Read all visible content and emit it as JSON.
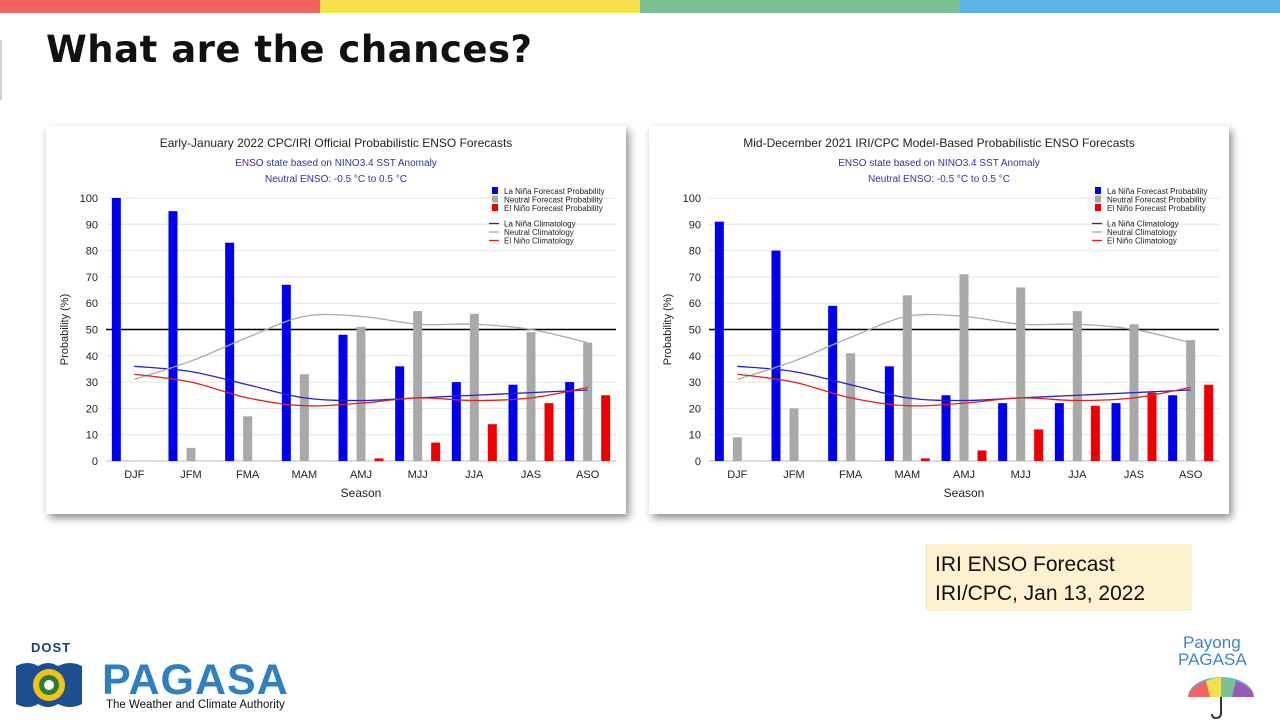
{
  "slide": {
    "title": "What are the chances?",
    "top_bar_colors": [
      "#ef6461",
      "#f5df4d",
      "#7cc196",
      "#5ab4e5"
    ]
  },
  "source_note": {
    "line1": "IRI ENSO Forecast",
    "line2": "IRI/CPC, Jan 13, 2022"
  },
  "logos": {
    "left": {
      "org": "DOST",
      "name": "PAGASA",
      "tagline": "The Weather and Climate Authority",
      "icon": "pagasa-seal-icon"
    },
    "right": {
      "line1": "Payong",
      "line2": "PAGASA",
      "icon": "umbrella-icon"
    }
  },
  "colors": {
    "la_nina": "#0000ee",
    "neutral": "#a9a9a9",
    "el_nino": "#ee0000",
    "la_nina_clim": "#2222cc",
    "neutral_clim": "#aaaaaa",
    "el_nino_clim": "#dd2222"
  },
  "chart_data": [
    {
      "type": "bar",
      "title": "Early-January 2022 CPC/IRI Official Probabilistic ENSO Forecasts",
      "subtitle1": "ENSO state based on NINO3.4 SST Anomaly",
      "subtitle2": "Neutral ENSO: -0.5 °C to 0.5 °C",
      "xlabel": "Season",
      "ylabel": "Probability (%)",
      "ylim": [
        0,
        100
      ],
      "yticks": [
        0,
        10,
        20,
        30,
        40,
        50,
        60,
        70,
        80,
        90,
        100
      ],
      "reference_line": 50,
      "grid": true,
      "legend_position": "top-right",
      "categories": [
        "DJF",
        "JFM",
        "FMA",
        "MAM",
        "AMJ",
        "MJJ",
        "JJA",
        "JAS",
        "ASO"
      ],
      "series": [
        {
          "name": "La Niña Forecast Probability",
          "kind": "bar",
          "color_key": "la_nina",
          "values": [
            100,
            95,
            83,
            67,
            48,
            36,
            30,
            29,
            30
          ]
        },
        {
          "name": "Neutral Forecast Probability",
          "kind": "bar",
          "color_key": "neutral",
          "values": [
            0,
            5,
            17,
            33,
            51,
            57,
            56,
            49,
            45
          ]
        },
        {
          "name": "El Niño Forecast Probability",
          "kind": "bar",
          "color_key": "el_nino",
          "values": [
            0,
            0,
            0,
            0,
            1,
            7,
            14,
            22,
            25
          ]
        },
        {
          "name": "La Niña Climatology",
          "kind": "line",
          "color_key": "la_nina_clim",
          "values": [
            36,
            34,
            29,
            24,
            23,
            24,
            25,
            26,
            27
          ]
        },
        {
          "name": "Neutral Climatology",
          "kind": "line",
          "color_key": "neutral_clim",
          "values": [
            31,
            38,
            47,
            55,
            55,
            52,
            52,
            50,
            45
          ]
        },
        {
          "name": "El Niño Climatology",
          "kind": "line",
          "color_key": "el_nino_clim",
          "values": [
            33,
            30,
            24,
            21,
            22,
            24,
            23,
            24,
            28
          ]
        }
      ]
    },
    {
      "type": "bar",
      "title": "Mid-December 2021 IRI/CPC Model-Based Probabilistic ENSO Forecasts",
      "subtitle1": "ENSO state based on NINO3.4 SST Anomaly",
      "subtitle2": "Neutral ENSO: -0.5 °C to 0.5 °C",
      "xlabel": "Season",
      "ylabel": "Probability (%)",
      "ylim": [
        0,
        100
      ],
      "yticks": [
        0,
        10,
        20,
        30,
        40,
        50,
        60,
        70,
        80,
        90,
        100
      ],
      "reference_line": 50,
      "grid": true,
      "legend_position": "top-right",
      "categories": [
        "DJF",
        "JFM",
        "FMA",
        "MAM",
        "AMJ",
        "MJJ",
        "JJA",
        "JAS",
        "ASO"
      ],
      "series": [
        {
          "name": "La Niña Forecast Probability",
          "kind": "bar",
          "color_key": "la_nina",
          "values": [
            91,
            80,
            59,
            36,
            25,
            22,
            22,
            22,
            25
          ]
        },
        {
          "name": "Neutral Forecast Probability",
          "kind": "bar",
          "color_key": "neutral",
          "values": [
            9,
            20,
            41,
            63,
            71,
            66,
            57,
            52,
            46
          ]
        },
        {
          "name": "El Niño Forecast Probability",
          "kind": "bar",
          "color_key": "el_nino",
          "values": [
            0,
            0,
            0,
            1,
            4,
            12,
            21,
            26,
            29
          ]
        },
        {
          "name": "La Niña Climatology",
          "kind": "line",
          "color_key": "la_nina_clim",
          "values": [
            36,
            34,
            29,
            24,
            23,
            24,
            25,
            26,
            27
          ]
        },
        {
          "name": "Neutral Climatology",
          "kind": "line",
          "color_key": "neutral_clim",
          "values": [
            31,
            38,
            47,
            55,
            55,
            52,
            52,
            50,
            45
          ]
        },
        {
          "name": "El Niño Climatology",
          "kind": "line",
          "color_key": "el_nino_clim",
          "values": [
            33,
            30,
            24,
            21,
            22,
            24,
            23,
            24,
            28
          ]
        }
      ]
    }
  ]
}
